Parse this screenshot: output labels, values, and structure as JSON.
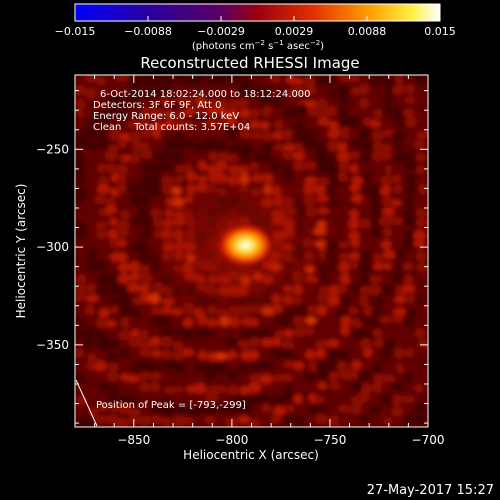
{
  "colorbar": {
    "ticks": [
      "−0.015",
      "−0.0088",
      "−0.0029",
      "0.0029",
      "0.0088",
      "0.015"
    ],
    "units_label": "(photons cm",
    "units_exp1": "−2",
    "units_s": " s",
    "units_exp2": "−1",
    "units_asec": " asec",
    "units_exp3": "−2",
    "units_close": ")"
  },
  "chart_data": {
    "type": "heatmap",
    "title": "Reconstructed RHESSI Image",
    "xlabel": "Heliocentric X (arcsec)",
    "ylabel": "Heliocentric Y (arcsec)",
    "xlim": [
      -880,
      -700
    ],
    "ylim": [
      -392,
      -212
    ],
    "x_ticks": [
      -850,
      -800,
      -750,
      -700
    ],
    "y_ticks": [
      -250,
      -300,
      -350
    ],
    "colorbar_range": [
      -0.015,
      0.015
    ],
    "peak": [
      -793,
      -299
    ],
    "annotations": [
      "6-Oct-2014 18:02:24.000 to 18:12:24.000",
      "Detectors: 3F 6F 9F, Att 0",
      "Energy Range: 6.0 - 12.0 keV",
      "Clean    Total counts: 3.57E+04"
    ],
    "peak_label": "Position of Peak = [-793,-299]"
  },
  "footer": {
    "timestamp": "27-May-2017 15:27"
  }
}
